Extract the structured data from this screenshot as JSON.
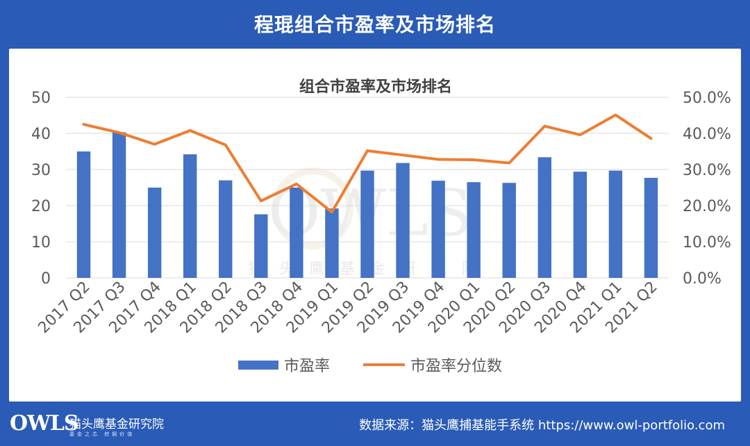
{
  "header": {
    "title": "程琨组合市盈率及市场排名"
  },
  "footer": {
    "logo_text": "OWLS",
    "logo_name": "猫头鹰基金研究院",
    "logo_tagline": "基金之芯 挖掘价值",
    "source": "数据来源：猫头鹰捕基能手系统 https://www.owl-portfolio.com"
  },
  "watermark": {
    "text": "OWLS",
    "caption": "猫头鹰基金研究院"
  },
  "colors": {
    "bar": "#4472c4",
    "line": "#ed7d31",
    "grid": "#d9d9d9",
    "axis_text": "#595959",
    "background": "#2a5bb6"
  },
  "chart_data": {
    "type": "bar",
    "title": "组合市盈率及市场排名",
    "categories": [
      "2017 Q2",
      "2017 Q3",
      "2017 Q4",
      "2018 Q1",
      "2018 Q2",
      "2018 Q3",
      "2018 Q4",
      "2019 Q1",
      "2019 Q2",
      "2019 Q3",
      "2019 Q4",
      "2020 Q1",
      "2020 Q2",
      "2020 Q3",
      "2020 Q4",
      "2021 Q1",
      "2021 Q2"
    ],
    "series": [
      {
        "name": "市盈率",
        "type": "bar",
        "axis": "left",
        "values": [
          35.0,
          40.3,
          25.0,
          34.2,
          27.0,
          17.6,
          25.0,
          19.2,
          29.7,
          31.8,
          26.9,
          26.5,
          26.3,
          33.4,
          29.4,
          29.7,
          27.7
        ]
      },
      {
        "name": "市盈率分位数",
        "type": "line",
        "axis": "right",
        "values": [
          42.5,
          40.2,
          37.0,
          40.8,
          36.8,
          21.3,
          26.0,
          18.2,
          35.2,
          34.0,
          32.8,
          32.7,
          31.8,
          42.0,
          39.6,
          45.1,
          38.6
        ]
      }
    ],
    "y_left": {
      "min": 0,
      "max": 50,
      "ticks": [
        "0",
        "10",
        "20",
        "30",
        "40",
        "50"
      ]
    },
    "y_right": {
      "min": 0,
      "max": 50,
      "unit": "%",
      "ticks": [
        "0.0%",
        "10.0%",
        "20.0%",
        "30.0%",
        "40.0%",
        "50.0%"
      ]
    },
    "grid": true,
    "legend_position": "bottom"
  }
}
